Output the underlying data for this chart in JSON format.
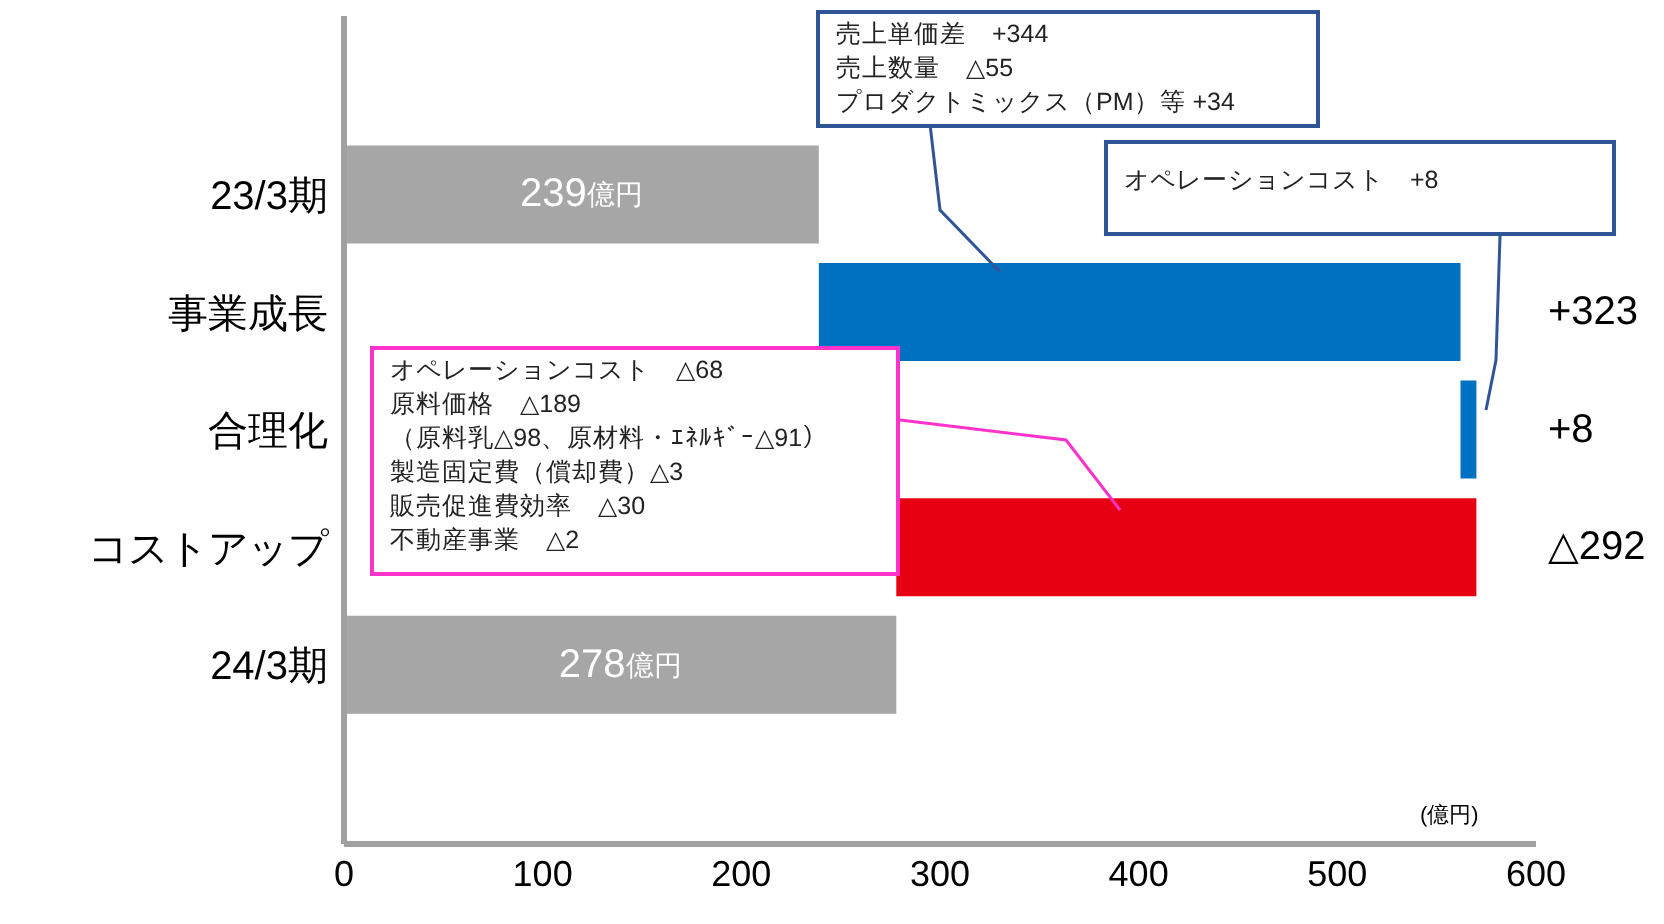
{
  "chart_data": {
    "type": "bar",
    "orientation": "horizontal",
    "xlabel": "(億円)",
    "categories": [
      "23/3期",
      "事業成長",
      "合理化",
      "コストアップ",
      "24/3期"
    ],
    "values": [
      239,
      323,
      8,
      -292,
      278
    ],
    "base": [
      0,
      239,
      562,
      570,
      0
    ],
    "colors": [
      "#a6a6a6",
      "#0070c0",
      "#0070c0",
      "#e60012",
      "#a6a6a6"
    ],
    "value_labels": [
      "239億円",
      "+323",
      "+8",
      "△292",
      "278億円"
    ],
    "xlim": [
      0,
      600
    ],
    "xticks": [
      0,
      100,
      200,
      300,
      400,
      500,
      600
    ],
    "annotations": [
      "売上単価差　+344",
      "売上数量　△55",
      "プロダクトミックス（PM）等 +34",
      "オペレーションコスト　+8",
      "オペレーションコスト　△68",
      "原料価格　△189",
      "（原料乳△98、原材料・ｴﾈﾙｷﾞｰ△91）",
      "製造固定費（償却費）△3",
      "販売促進費効率　△30",
      "不動産事業　△2"
    ]
  }
}
